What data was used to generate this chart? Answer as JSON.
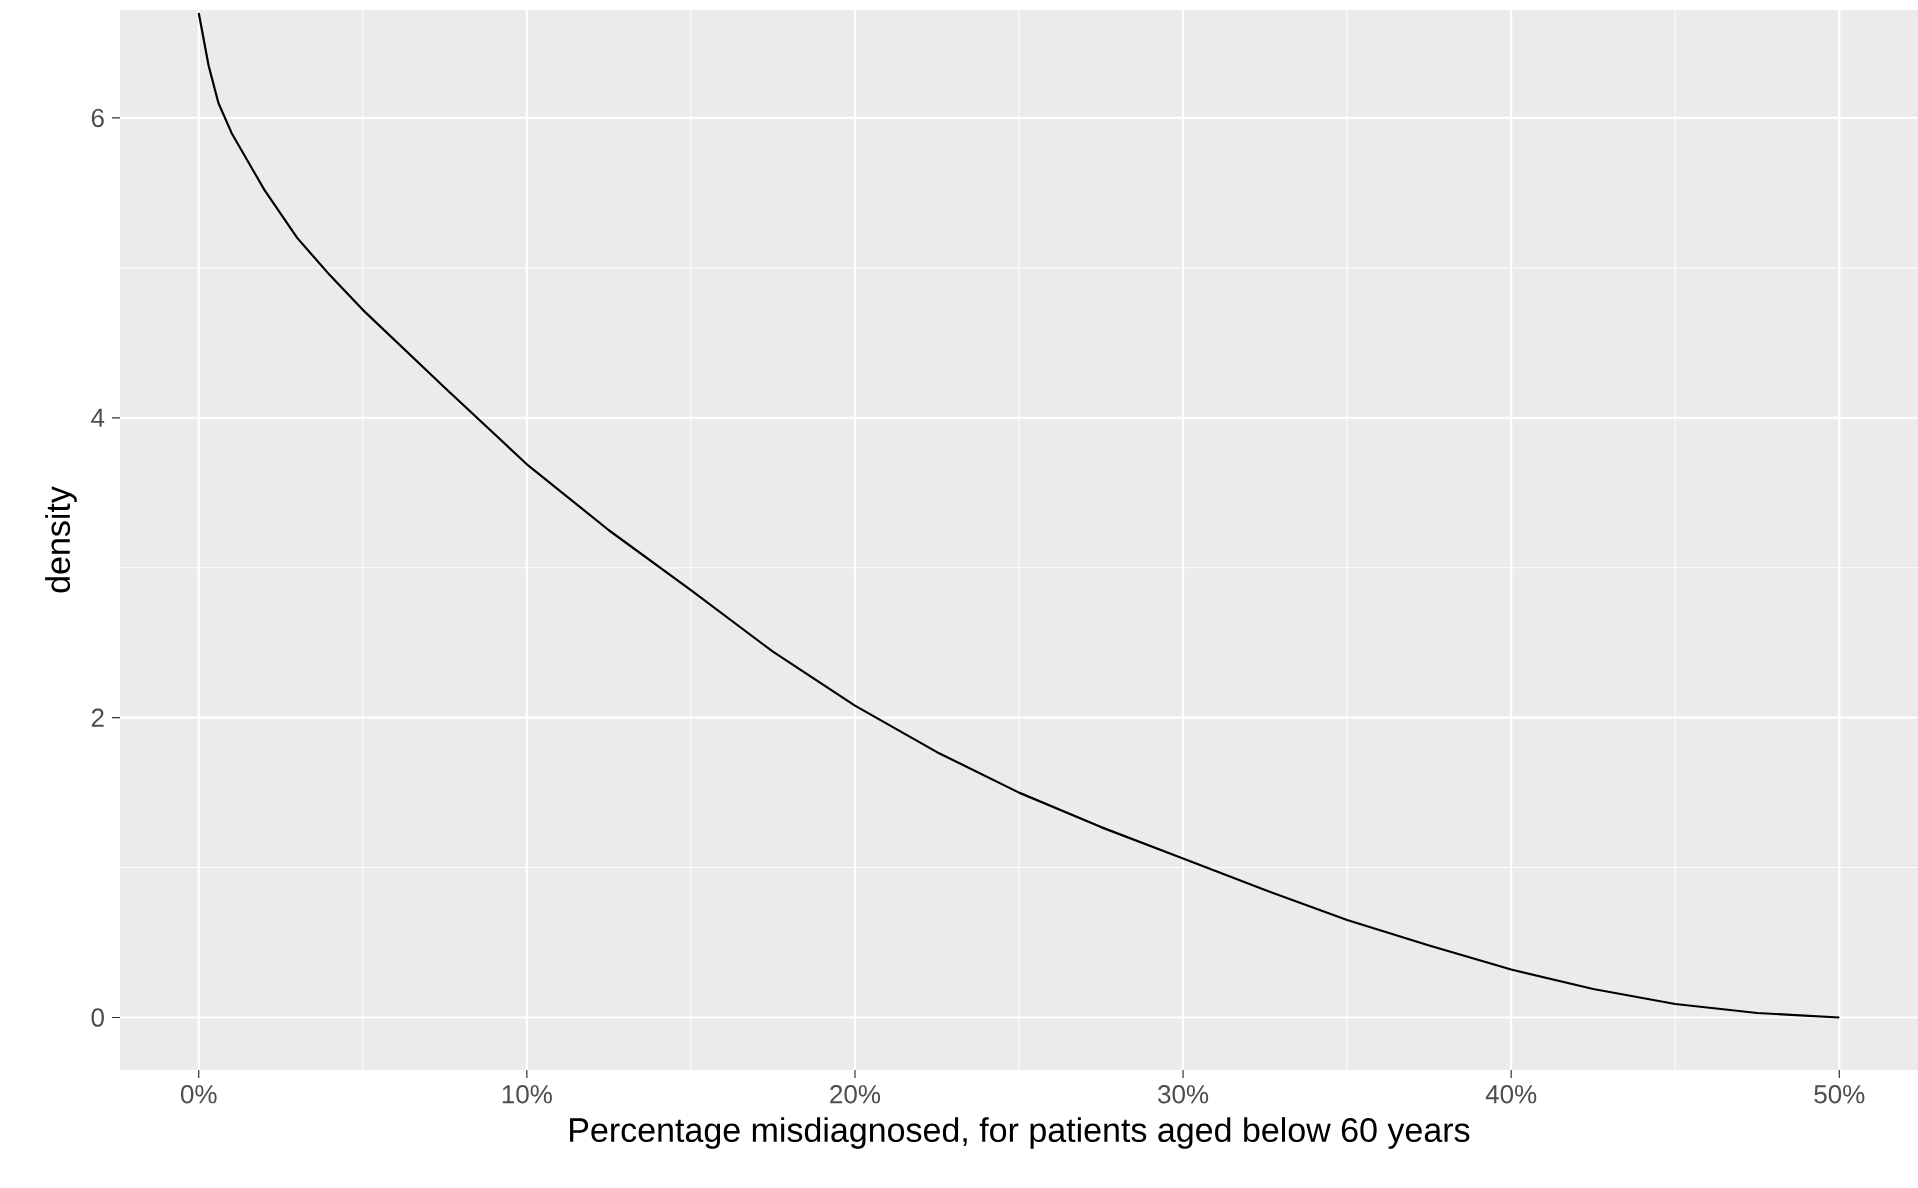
{
  "chart_data": {
    "type": "line",
    "xlabel": "Percentage misdiagnosed, for patients aged below 60 years",
    "ylabel": "density",
    "x": [
      0,
      0.3,
      0.6,
      1,
      2,
      3,
      4,
      5,
      7.5,
      10,
      12.5,
      15,
      17.5,
      20,
      22.5,
      25,
      27.5,
      30,
      32.5,
      35,
      37.5,
      40,
      42.5,
      45,
      47.5,
      50
    ],
    "series": [
      {
        "color": "#000000",
        "values": [
          6.7,
          6.35,
          6.1,
          5.9,
          5.52,
          5.2,
          4.95,
          4.72,
          4.2,
          3.69,
          3.25,
          2.85,
          2.44,
          2.08,
          1.77,
          1.5,
          1.27,
          1.06,
          0.85,
          0.65,
          0.48,
          0.32,
          0.19,
          0.09,
          0.03,
          0
        ]
      }
    ],
    "xlim": [
      -2.4,
      52.4
    ],
    "ylim": [
      -0.35,
      6.72
    ],
    "xticks": [
      {
        "value": 0,
        "label": "0%"
      },
      {
        "value": 10,
        "label": "10%"
      },
      {
        "value": 20,
        "label": "20%"
      },
      {
        "value": 30,
        "label": "30%"
      },
      {
        "value": 40,
        "label": "40%"
      },
      {
        "value": 50,
        "label": "50%"
      }
    ],
    "yticks": [
      0,
      2,
      4,
      6
    ],
    "grid": true,
    "marker": "none",
    "line_style": "solid"
  }
}
